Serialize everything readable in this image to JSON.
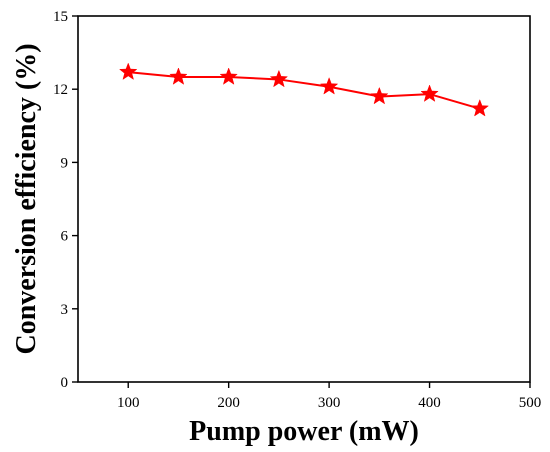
{
  "chart_data": {
    "type": "line",
    "title": "",
    "xlabel": "Pump power (mW)",
    "ylabel": "Conversion efficiency (%)",
    "xlim": [
      50,
      500
    ],
    "ylim": [
      0,
      15
    ],
    "xticks": [
      100,
      200,
      300,
      400,
      500
    ],
    "yticks": [
      0,
      3,
      6,
      9,
      12,
      15
    ],
    "grid": false,
    "legend": "none",
    "series": [
      {
        "marker": "star",
        "color": "#ff0000",
        "x": [
          100,
          150,
          200,
          250,
          300,
          350,
          400,
          450
        ],
        "y": [
          12.7,
          12.5,
          12.5,
          12.4,
          12.1,
          11.7,
          11.8,
          11.2
        ]
      }
    ]
  }
}
